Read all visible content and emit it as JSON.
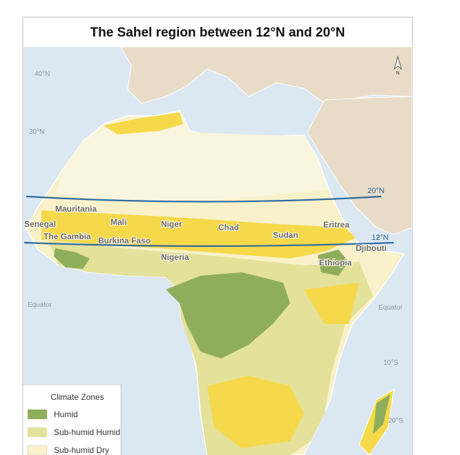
{
  "title": "The Sahel region between 12°N and 20°N",
  "north_arrow": "N",
  "grid_labels": [
    "40°N",
    "30°N",
    "Equator",
    "Equator",
    "10°S",
    "20°S"
  ],
  "sahel_lines": [
    "20°N",
    "12°N"
  ],
  "countries": [
    "Mauritania",
    "Senegal",
    "Mali",
    "Niger",
    "Chad",
    "Sudan",
    "Eritrea",
    "The Gambia",
    "Burkina Faso",
    "Nigeria",
    "Djibouti",
    "Ethiopia"
  ],
  "legend": {
    "title": "Climate Zones",
    "items": [
      {
        "label": "Humid",
        "color": "#8fae5c"
      },
      {
        "label": "Sub-humid Humid",
        "color": "#e4e19b"
      },
      {
        "label": "Sub-humid Dry",
        "color": "#f8f1c9"
      }
    ]
  }
}
